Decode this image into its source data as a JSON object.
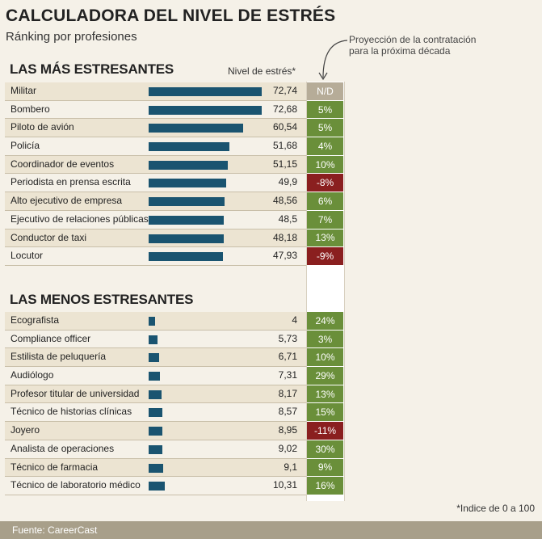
{
  "title": "CALCULADORA DEL NIVEL DE ESTRÉS",
  "subtitle": "Ránking por profesiones",
  "projection_note_line1": "Proyección de la contratación",
  "projection_note_line2": "para la próxima década",
  "colors": {
    "bar": "#1a5470",
    "positive": "#6a8f3a",
    "negative": "#8a1f1f",
    "na": "#b6ac98"
  },
  "chart_data": {
    "type": "bar",
    "title": "CALCULADORA DEL NIVEL DE ESTRÉS",
    "subtitle": "Ránking por profesiones",
    "value_label": "Nivel de estrés*",
    "xlim": [
      0,
      100
    ],
    "footnote": "*Indice de 0 a 100",
    "source": "Fuente: CareerCast",
    "top": {
      "heading": "LAS MÁS ESTRESANTES",
      "rows": [
        {
          "name": "Militar",
          "value": 72.74,
          "value_text": "72,74",
          "projection": "N/D",
          "status": "na"
        },
        {
          "name": "Bombero",
          "value": 72.68,
          "value_text": "72,68",
          "projection": "5%",
          "status": "positive"
        },
        {
          "name": "Piloto de avión",
          "value": 60.54,
          "value_text": "60,54",
          "projection": "5%",
          "status": "positive"
        },
        {
          "name": "Policía",
          "value": 51.68,
          "value_text": "51,68",
          "projection": "4%",
          "status": "positive"
        },
        {
          "name": "Coordinador de eventos",
          "value": 51.15,
          "value_text": "51,15",
          "projection": "10%",
          "status": "positive"
        },
        {
          "name": "Periodista en prensa escrita",
          "value": 49.9,
          "value_text": "49,9",
          "projection": "-8%",
          "status": "negative"
        },
        {
          "name": "Alto ejecutivo de empresa",
          "value": 48.56,
          "value_text": "48,56",
          "projection": "6%",
          "status": "positive"
        },
        {
          "name": "Ejecutivo de relaciones públicas",
          "value": 48.5,
          "value_text": "48,5",
          "projection": "7%",
          "status": "positive"
        },
        {
          "name": "Conductor de taxi",
          "value": 48.18,
          "value_text": "48,18",
          "projection": "13%",
          "status": "positive"
        },
        {
          "name": "Locutor",
          "value": 47.93,
          "value_text": "47,93",
          "projection": "-9%",
          "status": "negative"
        }
      ]
    },
    "bottom": {
      "heading": "LAS MENOS ESTRESANTES",
      "rows": [
        {
          "name": "Ecografista",
          "value": 4,
          "value_text": "4",
          "projection": "24%",
          "status": "positive"
        },
        {
          "name": "Compliance officer",
          "value": 5.73,
          "value_text": "5,73",
          "projection": "3%",
          "status": "positive"
        },
        {
          "name": "Estilista de peluquería",
          "value": 6.71,
          "value_text": "6,71",
          "projection": "10%",
          "status": "positive"
        },
        {
          "name": "Audiólogo",
          "value": 7.31,
          "value_text": "7,31",
          "projection": "29%",
          "status": "positive"
        },
        {
          "name": "Profesor titular de universidad",
          "value": 8.17,
          "value_text": "8,17",
          "projection": "13%",
          "status": "positive"
        },
        {
          "name": "Técnico de historias clínicas",
          "value": 8.57,
          "value_text": "8,57",
          "projection": "15%",
          "status": "positive"
        },
        {
          "name": "Joyero",
          "value": 8.95,
          "value_text": "8,95",
          "projection": "-11%",
          "status": "negative"
        },
        {
          "name": "Analista de operaciones",
          "value": 9.02,
          "value_text": "9,02",
          "projection": "30%",
          "status": "positive"
        },
        {
          "name": "Técnico de farmacia",
          "value": 9.1,
          "value_text": "9,1",
          "projection": "9%",
          "status": "positive"
        },
        {
          "name": "Técnico de laboratorio médico",
          "value": 10.31,
          "value_text": "10,31",
          "projection": "16%",
          "status": "positive"
        }
      ]
    }
  }
}
